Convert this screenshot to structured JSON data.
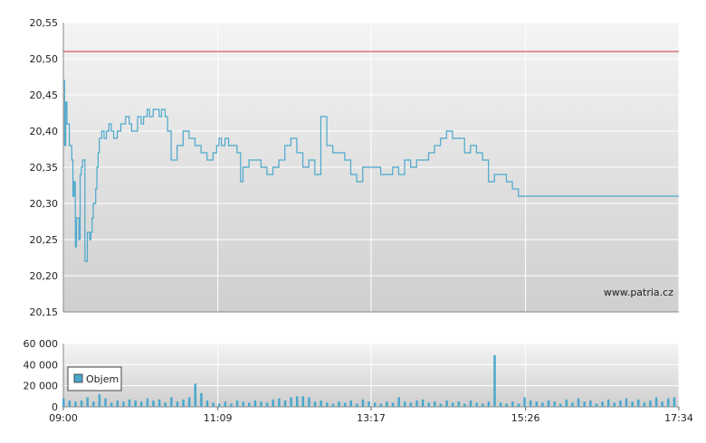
{
  "chart_data": [
    {
      "type": "line",
      "title": "",
      "xlabel": "",
      "ylabel": "",
      "ylim": [
        20.15,
        20.55
      ],
      "y_ticks": [
        "20,15",
        "20,20",
        "20,25",
        "20,30",
        "20,35",
        "20,40",
        "20,45",
        "20,50",
        "20,55"
      ],
      "x_ticks": [
        "09:00",
        "11:09",
        "13:17",
        "15:26",
        "17:34"
      ],
      "reference_line": {
        "value": 20.51,
        "color": "#cc3333"
      },
      "line_color": "#4aa8cc",
      "watermark": "www.patria.cz",
      "grid": true,
      "series": [
        {
          "x": [
            "09:00",
            "09:01",
            "09:02",
            "09:03",
            "09:05",
            "09:07",
            "09:08",
            "09:09",
            "09:10",
            "09:11",
            "09:13",
            "09:14",
            "09:15",
            "09:16",
            "09:18",
            "09:20",
            "09:22",
            "09:23",
            "09:24",
            "09:25",
            "09:27",
            "09:28",
            "09:29",
            "09:30",
            "09:32",
            "09:34",
            "09:36",
            "09:38",
            "09:40",
            "09:42",
            "09:45",
            "09:48",
            "09:50",
            "09:52",
            "09:55",
            "09:57",
            "10:00",
            "10:02",
            "10:05",
            "10:07",
            "10:10",
            "10:12",
            "10:15",
            "10:18",
            "10:20",
            "10:22",
            "10:25",
            "10:27",
            "10:30",
            "10:35",
            "10:40",
            "10:45",
            "10:50",
            "10:55",
            "11:00",
            "11:05",
            "11:08",
            "11:10",
            "11:12",
            "11:15",
            "11:18",
            "11:20",
            "11:23",
            "11:25",
            "11:28",
            "11:30",
            "11:35",
            "11:40",
            "11:45",
            "11:50",
            "11:55",
            "12:00",
            "12:05",
            "12:10",
            "12:15",
            "12:20",
            "12:25",
            "12:30",
            "12:35",
            "12:40",
            "12:45",
            "12:50",
            "12:55",
            "13:00",
            "13:05",
            "13:10",
            "13:15",
            "13:20",
            "13:25",
            "13:30",
            "13:35",
            "13:40",
            "13:45",
            "13:50",
            "13:55",
            "14:00",
            "14:05",
            "14:10",
            "14:15",
            "14:20",
            "14:25",
            "14:30",
            "14:32",
            "14:35",
            "14:40",
            "14:45",
            "14:50",
            "14:55",
            "15:00",
            "15:05",
            "15:10",
            "15:15",
            "15:20",
            "15:25",
            "15:30",
            "15:35",
            "15:40",
            "15:45",
            "15:50",
            "15:55",
            "16:00",
            "16:05",
            "16:10",
            "16:15",
            "16:20",
            "16:25",
            "16:30",
            "16:35",
            "16:40",
            "16:45",
            "16:50",
            "16:55",
            "17:00",
            "17:05",
            "17:10",
            "17:15",
            "17:20",
            "17:25",
            "17:30",
            "17:34"
          ],
          "y": [
            20.47,
            20.38,
            20.44,
            20.41,
            20.38,
            20.36,
            20.31,
            20.33,
            20.24,
            20.28,
            20.25,
            20.34,
            20.35,
            20.36,
            20.22,
            20.26,
            20.25,
            20.26,
            20.28,
            20.3,
            20.32,
            20.35,
            20.37,
            20.39,
            20.4,
            20.39,
            20.4,
            20.41,
            20.4,
            20.39,
            20.4,
            20.41,
            20.41,
            20.42,
            20.41,
            20.4,
            20.4,
            20.42,
            20.41,
            20.42,
            20.43,
            20.42,
            20.43,
            20.43,
            20.42,
            20.43,
            20.42,
            20.4,
            20.36,
            20.38,
            20.4,
            20.39,
            20.38,
            20.37,
            20.36,
            20.37,
            20.38,
            20.39,
            20.38,
            20.39,
            20.38,
            20.38,
            20.38,
            20.37,
            20.33,
            20.35,
            20.36,
            20.36,
            20.35,
            20.34,
            20.35,
            20.36,
            20.38,
            20.39,
            20.37,
            20.35,
            20.36,
            20.34,
            20.42,
            20.38,
            20.37,
            20.37,
            20.36,
            20.34,
            20.33,
            20.35,
            20.35,
            20.35,
            20.34,
            20.34,
            20.35,
            20.34,
            20.36,
            20.35,
            20.36,
            20.36,
            20.37,
            20.38,
            20.39,
            20.4,
            20.39,
            20.39,
            20.39,
            20.37,
            20.38,
            20.37,
            20.36,
            20.33,
            20.34,
            20.34,
            20.33,
            20.32,
            20.31,
            20.31,
            20.31,
            20.31,
            20.31,
            20.31,
            20.31,
            20.31,
            20.31,
            20.31,
            20.31,
            20.31,
            20.31,
            20.31,
            20.31,
            20.31,
            20.31,
            20.31,
            20.31,
            20.31,
            20.31,
            20.31,
            20.31,
            20.31,
            20.31,
            20.31,
            20.31,
            20.31
          ]
        }
      ]
    },
    {
      "type": "bar",
      "title": "",
      "xlabel": "",
      "ylabel": "",
      "ylim": [
        0,
        60000
      ],
      "y_ticks": [
        "0",
        "20 000",
        "40 000",
        "60 000"
      ],
      "x_ticks": [
        "09:00",
        "11:09",
        "13:17",
        "15:26",
        "17:34"
      ],
      "bar_color": "#4aa8cc",
      "legend": {
        "label": "Objem",
        "placement": "left"
      },
      "grid": true,
      "series": [
        {
          "name": "Objem",
          "x": [
            "09:00",
            "09:05",
            "09:10",
            "09:15",
            "09:20",
            "09:25",
            "09:30",
            "09:35",
            "09:40",
            "09:45",
            "09:50",
            "09:55",
            "10:00",
            "10:05",
            "10:10",
            "10:15",
            "10:20",
            "10:25",
            "10:30",
            "10:35",
            "10:40",
            "10:45",
            "10:50",
            "10:55",
            "11:00",
            "11:05",
            "11:10",
            "11:15",
            "11:20",
            "11:25",
            "11:30",
            "11:35",
            "11:40",
            "11:45",
            "11:50",
            "11:55",
            "12:00",
            "12:05",
            "12:10",
            "12:15",
            "12:20",
            "12:25",
            "12:30",
            "12:35",
            "12:40",
            "12:45",
            "12:50",
            "12:55",
            "13:00",
            "13:05",
            "13:10",
            "13:15",
            "13:20",
            "13:25",
            "13:30",
            "13:35",
            "13:40",
            "13:45",
            "13:50",
            "13:55",
            "14:00",
            "14:05",
            "14:10",
            "14:15",
            "14:20",
            "14:25",
            "14:30",
            "14:35",
            "14:40",
            "14:45",
            "14:50",
            "14:55",
            "15:00",
            "15:05",
            "15:10",
            "15:15",
            "15:20",
            "15:25",
            "15:30",
            "15:35",
            "15:40",
            "15:45",
            "15:50",
            "15:55",
            "16:00",
            "16:05",
            "16:10",
            "16:15",
            "16:20",
            "16:25",
            "16:30",
            "16:35",
            "16:40",
            "16:45",
            "16:50",
            "16:55",
            "17:00",
            "17:05",
            "17:10",
            "17:15",
            "17:20",
            "17:25",
            "17:30"
          ],
          "values": [
            8000,
            6000,
            5000,
            6000,
            9000,
            5000,
            12000,
            8000,
            4000,
            6000,
            5000,
            7000,
            6000,
            5000,
            8000,
            6000,
            7000,
            4000,
            9000,
            5000,
            7000,
            9000,
            22000,
            13000,
            6000,
            4000,
            3000,
            5000,
            3000,
            6000,
            5000,
            4000,
            6000,
            5000,
            4000,
            7000,
            8000,
            6000,
            9000,
            10000,
            10000,
            9000,
            5000,
            6000,
            4000,
            3000,
            5000,
            4000,
            6000,
            3000,
            7000,
            5000,
            4000,
            3000,
            5000,
            4000,
            9000,
            5000,
            4000,
            6000,
            7000,
            4000,
            5000,
            3000,
            6000,
            4000,
            5000,
            3000,
            6000,
            4000,
            3000,
            5000,
            49000,
            4000,
            3000,
            5000,
            3000,
            9000,
            6000,
            5000,
            4000,
            6000,
            5000,
            3000,
            7000,
            4000,
            8000,
            5000,
            6000,
            3000,
            5000,
            7000,
            4000,
            6000,
            8000,
            5000,
            7000,
            4000,
            6000,
            9000,
            5000,
            8000,
            9000
          ]
        }
      ]
    }
  ]
}
